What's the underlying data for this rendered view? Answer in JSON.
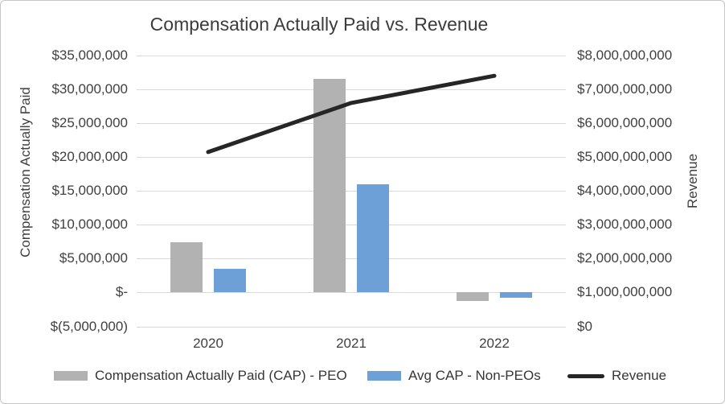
{
  "chart_data": {
    "type": "bar+line",
    "title": "Compensation Actually Paid vs. Revenue",
    "categories": [
      "2020",
      "2021",
      "2022"
    ],
    "series": [
      {
        "name": "Compensation Actually Paid (CAP) - PEO",
        "type": "bar",
        "axis": "left",
        "color": "#b2b2b2",
        "values": [
          7400000,
          31500000,
          -1300000
        ]
      },
      {
        "name": "Avg CAP - Non-PEOs",
        "type": "bar",
        "axis": "left",
        "color": "#6ca0d6",
        "values": [
          3500000,
          16000000,
          -800000
        ]
      },
      {
        "name": "Revenue",
        "type": "line",
        "axis": "right",
        "color": "#262626",
        "values": [
          5150000000,
          6600000000,
          7400000000
        ]
      }
    ],
    "left_ylabel": "Compensation Actually Paid",
    "right_ylabel": "Revenue",
    "left_ylim": [
      -5000000,
      35000000
    ],
    "right_ylim": [
      0,
      8000000000
    ],
    "left_ticks": [
      "$35,000,000",
      "$30,000,000",
      "$25,000,000",
      "$20,000,000",
      "$15,000,000",
      "$10,000,000",
      "$5,000,000",
      "$-",
      "$(5,000,000)"
    ],
    "right_ticks": [
      "$8,000,000,000",
      "$7,000,000,000",
      "$6,000,000,000",
      "$5,000,000,000",
      "$4,000,000,000",
      "$3,000,000,000",
      "$2,000,000,000",
      "$1,000,000,000",
      "$0"
    ],
    "grid": true,
    "legend_position": "bottom"
  }
}
